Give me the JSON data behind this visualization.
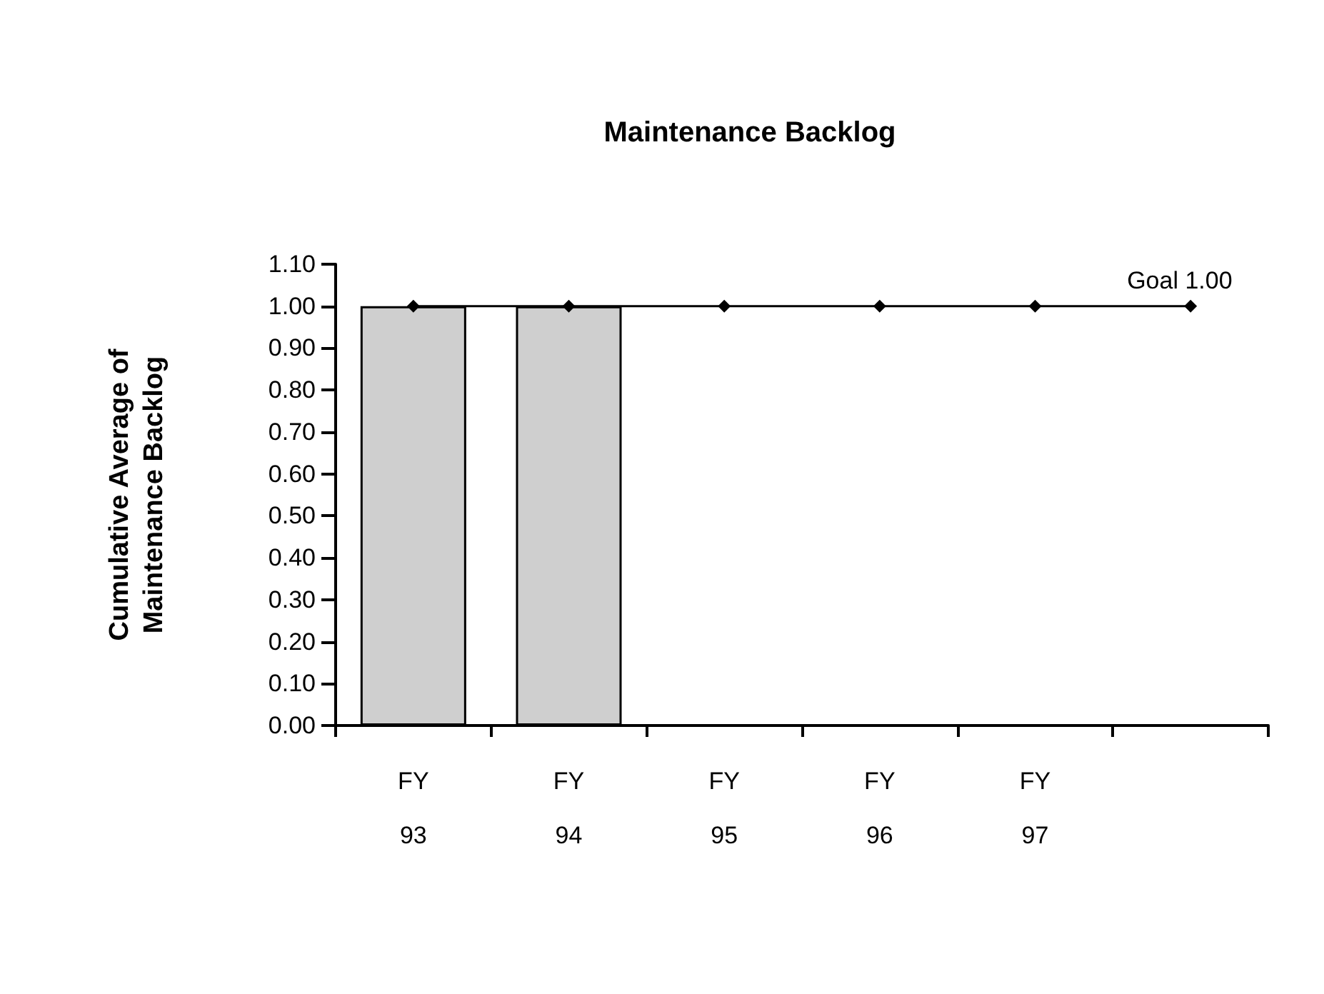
{
  "chart_data": {
    "type": "bar",
    "title": "Maintenance Backlog",
    "ylabel": "Cumulative Average of\nMaintenance Backlog",
    "categories": [
      "FY\n93",
      "FY\n94",
      "FY\n95",
      "FY\n96",
      "FY\n97",
      null
    ],
    "series": [
      {
        "color": "#cfcfcf",
        "values": [
          1.0,
          1.0,
          null,
          null,
          null,
          null
        ]
      },
      {
        "type": "line",
        "name": "Goal 1.00",
        "color": "#000000",
        "marker": "diamond",
        "values": [
          1.0,
          1.0,
          1.0,
          1.0,
          1.0,
          1.0
        ]
      }
    ],
    "ylim": [
      0,
      1.1
    ],
    "yticks": [
      {
        "value": 0,
        "label": "0.00"
      },
      {
        "value": 0.1,
        "label": "0.10"
      },
      {
        "value": 0.2,
        "label": "0.20"
      },
      {
        "value": 0.3,
        "label": "0.30"
      },
      {
        "value": 0.4,
        "label": "0.40"
      },
      {
        "value": 0.5,
        "label": "0.50"
      },
      {
        "value": 0.6,
        "label": "0.60"
      },
      {
        "value": 0.7,
        "label": "0.70"
      },
      {
        "value": 0.8,
        "label": "0.80"
      },
      {
        "value": 0.9,
        "label": "0.90"
      },
      {
        "value": 1.0,
        "label": "1.00"
      },
      {
        "value": 1.1,
        "label": "1.10"
      }
    ],
    "grid": false,
    "legend": false
  }
}
